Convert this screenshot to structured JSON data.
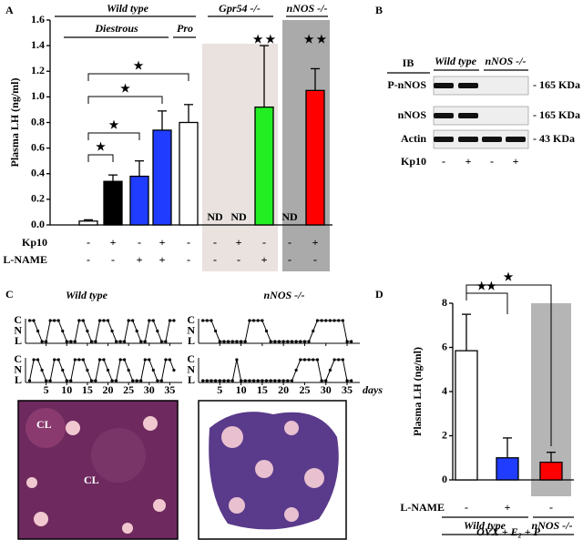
{
  "panel_labels": [
    "A",
    "B",
    "C",
    "D"
  ],
  "chart_data": [
    {
      "type": "bar",
      "ylabel": "Plasma LH (ng/ml)",
      "ylim": [
        0,
        1.6
      ],
      "yticks": [
        {
          "value": 0,
          "label": "0.0"
        },
        {
          "value": 0.2,
          "label": "0.2"
        },
        {
          "value": 0.4,
          "label": "0.4"
        },
        {
          "value": 0.6,
          "label": "0.6"
        },
        {
          "value": 0.8,
          "label": "0.8"
        },
        {
          "value": 1.0,
          "label": "1.0"
        },
        {
          "value": 1.2,
          "label": "1.2"
        },
        {
          "value": 1.4,
          "label": "1.4"
        },
        {
          "value": 1.6,
          "label": "1.6"
        }
      ],
      "values": [
        0.03,
        0.34,
        0.38,
        0.74,
        0.8,
        null,
        null,
        0.92,
        null,
        1.05
      ],
      "errors": [
        0.01,
        0.05,
        0.12,
        0.15,
        0.14,
        null,
        null,
        0.48,
        null,
        0.17
      ],
      "value_labels": [
        null,
        null,
        null,
        null,
        null,
        "ND",
        "ND",
        null,
        "ND",
        null
      ],
      "colors": [
        "#ffffff",
        "#000000",
        "#1f3cff",
        "#1f3cff",
        "#ffffff",
        null,
        null,
        "#22ee22",
        null,
        "#ff0000"
      ],
      "row_labels": [
        "Kp10",
        "L-NAME"
      ],
      "rows": [
        [
          "-",
          "+",
          "-",
          "+",
          "-",
          "-",
          "+",
          "-",
          "-",
          "+"
        ],
        [
          "-",
          "-",
          "+",
          "+",
          "-",
          "-",
          "-",
          "+",
          "-",
          "-"
        ]
      ],
      "groups": [
        "Wild type",
        "Diestrous",
        "Pro",
        "Gpr54 -/-",
        "nNOS -/-"
      ],
      "annotations": [
        "★",
        "★",
        "★",
        "★",
        "★ ★",
        "★ ★"
      ]
    },
    {
      "type": "line",
      "titles": [
        "Wild type",
        "nNOS -/-"
      ],
      "xlabel": "days",
      "x": [
        1,
        2,
        3,
        4,
        5,
        6,
        7,
        8,
        9,
        10,
        11,
        12,
        13,
        14,
        15,
        16,
        17,
        18,
        19,
        20,
        21,
        22,
        23,
        24,
        25,
        26,
        27,
        28,
        29,
        30,
        31,
        32,
        33,
        34,
        35,
        36
      ],
      "xlim": [
        0,
        38
      ],
      "xticks": [
        5,
        10,
        15,
        20,
        25,
        30,
        35
      ],
      "yticks": [
        "L",
        "N",
        "C"
      ],
      "series": [
        {
          "values": [
            "C",
            "C",
            "N",
            "L",
            "L",
            "C",
            "C",
            "C",
            "N",
            "L",
            "L",
            "L",
            "C",
            "C",
            "N",
            "L",
            "L",
            "C",
            "C",
            "C",
            "N",
            "L",
            "L",
            "L",
            "C",
            "C",
            "N",
            "L",
            "L",
            "C",
            "C",
            "N",
            "L",
            "L",
            "C",
            "C"
          ]
        },
        {
          "values": [
            "L",
            "C",
            "C",
            "N",
            "L",
            "L",
            "C",
            "C",
            "N",
            "L",
            "L",
            "C",
            "C",
            "C",
            "N",
            "L",
            "L",
            "C",
            "C",
            "N",
            "L",
            "L",
            "C",
            "C",
            "N",
            "L",
            "L",
            "L",
            "C",
            "C",
            "N",
            "L",
            "L",
            "C",
            "C",
            "N"
          ]
        },
        {
          "values": [
            "C",
            "C",
            "C",
            "N",
            "L",
            "L",
            "L",
            "L",
            "L",
            "L",
            "L",
            "C",
            "C",
            "C",
            "C",
            "N",
            "L",
            "L",
            "L",
            "L",
            "L",
            "L",
            "L",
            "L",
            "L",
            "L",
            "N",
            "C",
            "C",
            "C",
            "C",
            "C",
            "C",
            "C",
            "L",
            "L"
          ]
        },
        {
          "values": [
            "L",
            "L",
            "L",
            "L",
            "L",
            "L",
            "L",
            "L",
            "C",
            "L",
            "L",
            "L",
            "L",
            "L",
            "L",
            "L",
            "L",
            "L",
            "L",
            "L",
            "L",
            "L",
            "N",
            "C",
            "C",
            "C",
            "C",
            "C",
            "L",
            "L",
            "N",
            "C",
            "C",
            "C",
            "L",
            "L"
          ]
        }
      ],
      "histology_labels": [
        "CL",
        "CL"
      ]
    },
    {
      "type": "bar",
      "ylabel": "Plasma LH (ng/ml)",
      "ylim": [
        0,
        8
      ],
      "yticks": [
        0,
        2,
        4,
        6,
        8
      ],
      "values": [
        5.85,
        1.0,
        0.8
      ],
      "errors": [
        1.65,
        0.9,
        0.45
      ],
      "colors": [
        "#ffffff",
        "#1f3cff",
        "#ff0000"
      ],
      "row_labels": [
        "L-NAME"
      ],
      "rows": [
        [
          "-",
          "+",
          "-"
        ]
      ],
      "groups": [
        "Wild type",
        "nNOS -/-",
        "OVX + E₂ + P"
      ],
      "annotations": [
        "★★",
        "★"
      ]
    }
  ],
  "blot": {
    "header": "IB",
    "groups": [
      "Wild type",
      "nNOS -/-"
    ],
    "rows": [
      "P-nNOS",
      "nNOS",
      "Actin"
    ],
    "sizes": [
      "- 165 KDa",
      "- 165 KDa",
      "- 43 KDa"
    ],
    "treatment": "Kp10",
    "signs": [
      "-",
      "+",
      "-",
      "+"
    ]
  }
}
